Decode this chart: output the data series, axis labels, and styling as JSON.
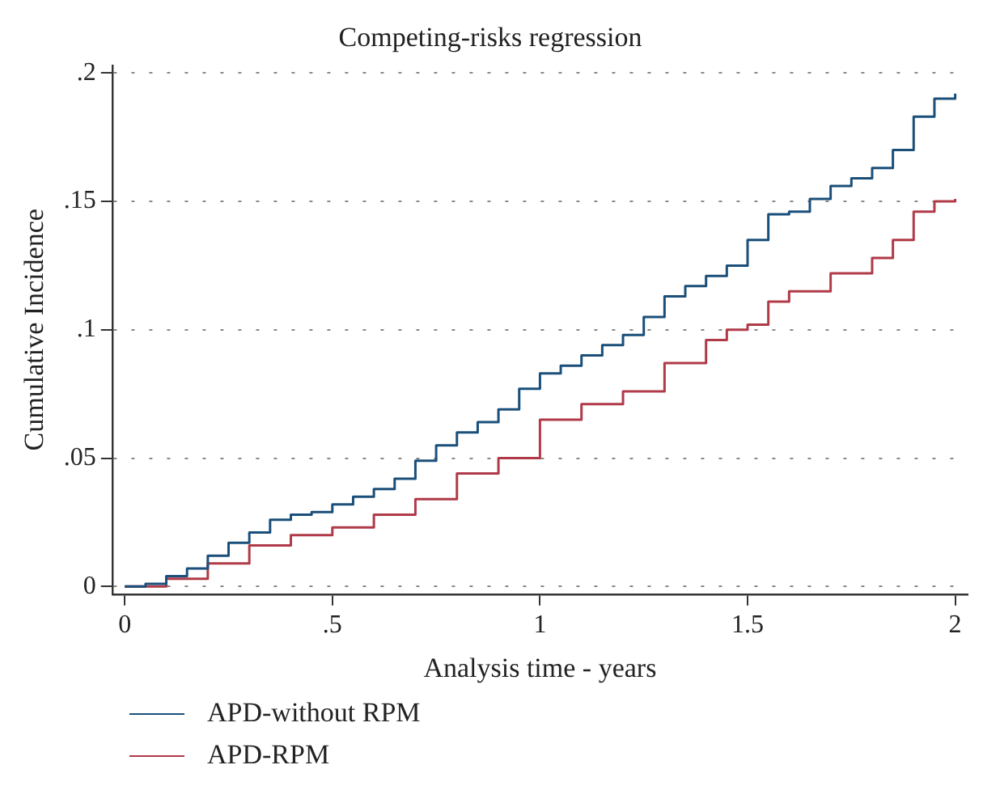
{
  "chart_data": {
    "type": "step",
    "title": "Competing-risks regression",
    "xlabel": "Analysis time - years",
    "ylabel": "Cumulative Incidence",
    "xlim": [
      -0.03,
      2.03
    ],
    "xticks": [
      0,
      {
        "value": 0.5,
        "label": ".5"
      },
      1,
      1.5,
      2
    ],
    "ylim": [
      -0.003,
      0.203
    ],
    "yticks": [
      0,
      {
        "value": 0.05,
        "label": ".05"
      },
      {
        "value": 0.1,
        "label": ".1"
      },
      {
        "value": 0.15,
        "label": ".15"
      },
      {
        "value": 0.2,
        "label": ".2"
      }
    ],
    "grid": "y",
    "legend": "bottom left",
    "line_style": "solid",
    "marker": "none",
    "series": [
      {
        "name": "APD-without RPM",
        "color": "#1a4f7a",
        "x": [
          0,
          0.05,
          0.1,
          0.15,
          0.2,
          0.25,
          0.3,
          0.35,
          0.4,
          0.45,
          0.5,
          0.55,
          0.6,
          0.65,
          0.7,
          0.75,
          0.8,
          0.85,
          0.9,
          0.95,
          1.0,
          1.05,
          1.1,
          1.15,
          1.2,
          1.25,
          1.3,
          1.35,
          1.4,
          1.45,
          1.5,
          1.55,
          1.6,
          1.65,
          1.7,
          1.75,
          1.8,
          1.85,
          1.9,
          1.95,
          2.0
        ],
        "values": [
          0,
          0.001,
          0.004,
          0.007,
          0.012,
          0.017,
          0.021,
          0.026,
          0.028,
          0.029,
          0.032,
          0.035,
          0.038,
          0.042,
          0.049,
          0.055,
          0.06,
          0.064,
          0.069,
          0.077,
          0.083,
          0.086,
          0.09,
          0.094,
          0.098,
          0.105,
          0.113,
          0.117,
          0.121,
          0.125,
          0.135,
          0.145,
          0.146,
          0.151,
          0.156,
          0.159,
          0.163,
          0.17,
          0.183,
          0.19,
          0.192
        ]
      },
      {
        "name": "APD-RPM",
        "color": "#b03a48",
        "x": [
          0,
          0.1,
          0.2,
          0.3,
          0.4,
          0.5,
          0.6,
          0.7,
          0.8,
          0.9,
          1.0,
          1.1,
          1.2,
          1.3,
          1.4,
          1.45,
          1.5,
          1.55,
          1.6,
          1.7,
          1.8,
          1.85,
          1.9,
          1.95,
          2.0
        ],
        "values": [
          0,
          0.003,
          0.009,
          0.016,
          0.02,
          0.023,
          0.028,
          0.034,
          0.044,
          0.05,
          0.065,
          0.071,
          0.076,
          0.087,
          0.096,
          0.1,
          0.102,
          0.111,
          0.115,
          0.122,
          0.128,
          0.135,
          0.146,
          0.15,
          0.151
        ]
      }
    ]
  }
}
